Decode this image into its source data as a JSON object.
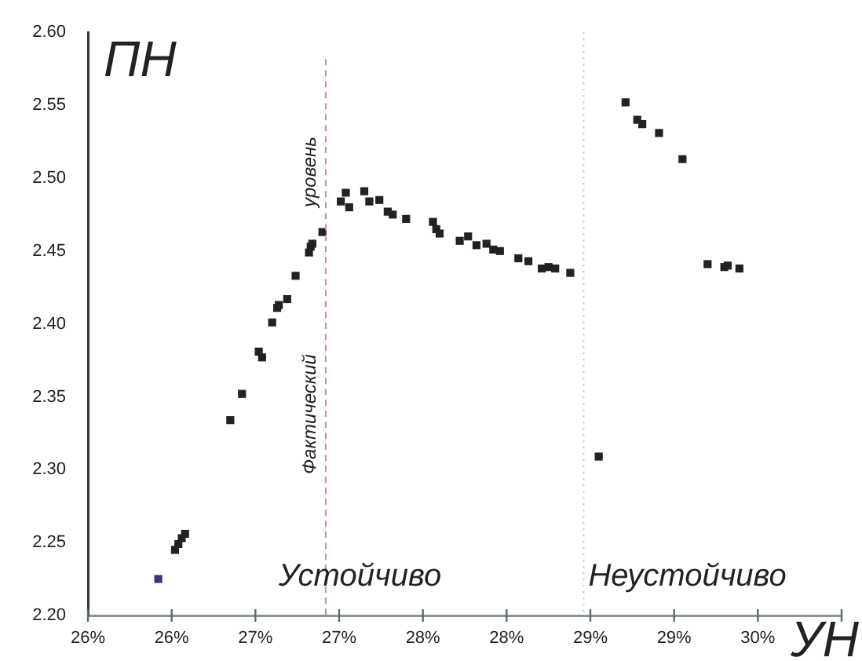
{
  "chart_data": {
    "type": "scatter",
    "xlabel": "УН",
    "ylabel": "ПН",
    "x": [
      25.92,
      26.02,
      26.04,
      26.06,
      26.08,
      26.35,
      26.42,
      26.52,
      26.54,
      26.6,
      26.63,
      26.64,
      26.69,
      26.74,
      26.82,
      26.83,
      26.84,
      26.9,
      27.01,
      27.04,
      27.06,
      27.15,
      27.18,
      27.24,
      27.29,
      27.32,
      27.4,
      27.56,
      27.58,
      27.6,
      27.72,
      27.77,
      27.82,
      27.88,
      27.92,
      27.96,
      28.07,
      28.13,
      28.21,
      28.25,
      28.29,
      28.38,
      28.55,
      28.71,
      28.78,
      28.81,
      28.91,
      29.05,
      29.2,
      29.3,
      29.32,
      29.39
    ],
    "series": [
      {
        "values": [
          2.225,
          2.245,
          2.249,
          2.253,
          2.256,
          2.334,
          2.352,
          2.381,
          2.377,
          2.401,
          2.411,
          2.413,
          2.417,
          2.433,
          2.449,
          2.453,
          2.455,
          2.463,
          2.484,
          2.49,
          2.48,
          2.491,
          2.484,
          2.485,
          2.477,
          2.475,
          2.472,
          2.47,
          2.465,
          2.462,
          2.457,
          2.46,
          2.454,
          2.455,
          2.451,
          2.45,
          2.445,
          2.443,
          2.438,
          2.439,
          2.438,
          2.435,
          2.309,
          2.552,
          2.54,
          2.537,
          2.531,
          2.513,
          2.441,
          2.439,
          2.44,
          2.438
        ],
        "colors": [
          "#3b3486",
          "#222222",
          "#222222",
          "#222222",
          "#222222",
          "#222222",
          "#222222",
          "#222222",
          "#222222",
          "#222222",
          "#222222",
          "#222222",
          "#222222",
          "#222222",
          "#222222",
          "#222222",
          "#222222",
          "#222222",
          "#222222",
          "#222222",
          "#222222",
          "#222222",
          "#222222",
          "#222222",
          "#222222",
          "#222222",
          "#222222",
          "#222222",
          "#222222",
          "#222222",
          "#222222",
          "#222222",
          "#222222",
          "#222222",
          "#222222",
          "#222222",
          "#222222",
          "#222222",
          "#222222",
          "#222222",
          "#222222",
          "#222222",
          "#222222",
          "#222222",
          "#222222",
          "#222222",
          "#222222",
          "#222222",
          "#222222",
          "#222222",
          "#222222",
          "#222222"
        ]
      }
    ],
    "marker": "square",
    "xlim": [
      25.5,
      30
    ],
    "xticks": [
      {
        "value": 25.5,
        "label": "26%"
      },
      {
        "value": 26,
        "label": "26%"
      },
      {
        "value": 26.5,
        "label": "27%"
      },
      {
        "value": 27,
        "label": "27%"
      },
      {
        "value": 27.5,
        "label": "28%"
      },
      {
        "value": 28,
        "label": "28%"
      },
      {
        "value": 28.5,
        "label": "29%"
      },
      {
        "value": 29,
        "label": "29%"
      },
      {
        "value": 29.5,
        "label": "30%"
      },
      {
        "value": 30,
        "label": null
      }
    ],
    "ylim": [
      2.2,
      2.6
    ],
    "yticks": [
      {
        "value": 2.2,
        "label": "2.20"
      },
      {
        "value": 2.25,
        "label": "2.25"
      },
      {
        "value": 2.3,
        "label": "2.30"
      },
      {
        "value": 2.35,
        "label": "2.35"
      },
      {
        "value": 2.4,
        "label": "2.40"
      },
      {
        "value": 2.45,
        "label": "2.45"
      },
      {
        "value": 2.5,
        "label": "2.50"
      },
      {
        "value": 2.55,
        "label": "2.55"
      },
      {
        "value": 2.6,
        "label": "2.60"
      }
    ],
    "ref_lines": [
      {
        "axis": "x",
        "value": 26.92,
        "label": "Фактический уровень",
        "color": "#c98a9a",
        "line_style": "dashed"
      },
      {
        "axis": "x",
        "value": 28.46,
        "color": "#d8b8c0",
        "line_style": "dotted"
      }
    ],
    "annotations": [
      "Устойчиво",
      "Неустойчиво"
    ],
    "grid": false,
    "legend": false
  }
}
